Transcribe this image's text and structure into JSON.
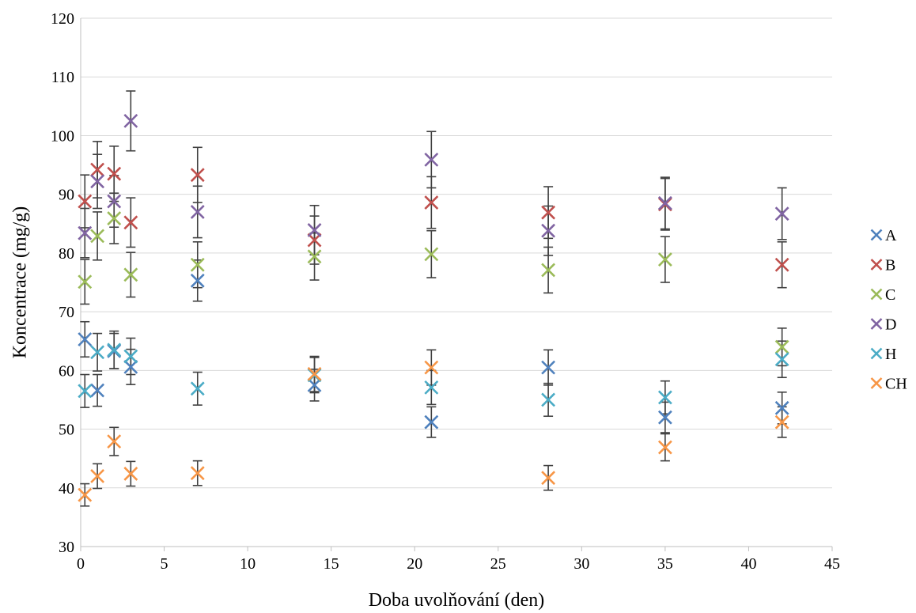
{
  "chart_data": {
    "type": "scatter",
    "xlabel": "Doba uvolňování (den)",
    "ylabel": "Koncentrace (mg/g)",
    "xlim": [
      0,
      45
    ],
    "ylim": [
      30,
      120
    ],
    "xticks": [
      "0",
      "5",
      "10",
      "15",
      "20",
      "25",
      "30",
      "35",
      "40",
      "45"
    ],
    "yticks": [
      "30",
      "40",
      "50",
      "60",
      "70",
      "80",
      "90",
      "100",
      "110",
      "120"
    ],
    "grid": "horizontal",
    "legend_position": "right",
    "marker": "x",
    "error_bars": true,
    "series": [
      {
        "name": "A",
        "color": "#4f81bd",
        "points": [
          {
            "x": 0.25,
            "y": 65.3,
            "err": 3.0
          },
          {
            "x": 1,
            "y": 56.6,
            "err": 2.7
          },
          {
            "x": 2,
            "y": 63.3,
            "err": 3.0
          },
          {
            "x": 3,
            "y": 60.6,
            "err": 3.0
          },
          {
            "x": 7,
            "y": 75.3,
            "err": 3.5
          },
          {
            "x": 14,
            "y": 57.5,
            "err": 2.7
          },
          {
            "x": 21,
            "y": 51.2,
            "err": 2.6
          },
          {
            "x": 28,
            "y": 60.5,
            "err": 3.0
          },
          {
            "x": 35,
            "y": 52.0,
            "err": 2.6
          },
          {
            "x": 42,
            "y": 53.6,
            "err": 2.7
          }
        ]
      },
      {
        "name": "B",
        "color": "#c0504d",
        "points": [
          {
            "x": 0.25,
            "y": 88.8,
            "err": 4.5
          },
          {
            "x": 1,
            "y": 94.2,
            "err": 4.8
          },
          {
            "x": 2,
            "y": 93.5,
            "err": 4.7
          },
          {
            "x": 3,
            "y": 85.2,
            "err": 4.2
          },
          {
            "x": 7,
            "y": 93.3,
            "err": 4.7
          },
          {
            "x": 14,
            "y": 82.2,
            "err": 4.1
          },
          {
            "x": 21,
            "y": 88.6,
            "err": 4.4
          },
          {
            "x": 28,
            "y": 86.9,
            "err": 4.4
          },
          {
            "x": 35,
            "y": 88.3,
            "err": 4.4
          },
          {
            "x": 42,
            "y": 78.0,
            "err": 3.9
          }
        ]
      },
      {
        "name": "C",
        "color": "#9bbb59",
        "points": [
          {
            "x": 0.25,
            "y": 75.1,
            "err": 3.8
          },
          {
            "x": 1,
            "y": 82.9,
            "err": 4.1
          },
          {
            "x": 2,
            "y": 85.9,
            "err": 4.3
          },
          {
            "x": 3,
            "y": 76.3,
            "err": 3.8
          },
          {
            "x": 7,
            "y": 78.0,
            "err": 3.9
          },
          {
            "x": 14,
            "y": 79.4,
            "err": 4.0
          },
          {
            "x": 21,
            "y": 79.8,
            "err": 4.0
          },
          {
            "x": 28,
            "y": 77.1,
            "err": 3.9
          },
          {
            "x": 35,
            "y": 78.9,
            "err": 3.9
          },
          {
            "x": 42,
            "y": 64.0,
            "err": 3.2
          }
        ]
      },
      {
        "name": "D",
        "color": "#8064a2",
        "points": [
          {
            "x": 0.25,
            "y": 83.4,
            "err": 4.2
          },
          {
            "x": 1,
            "y": 92.2,
            "err": 4.6
          },
          {
            "x": 2,
            "y": 88.8,
            "err": 4.4
          },
          {
            "x": 3,
            "y": 102.5,
            "err": 5.1
          },
          {
            "x": 7,
            "y": 87.0,
            "err": 4.4
          },
          {
            "x": 14,
            "y": 83.9,
            "err": 4.2
          },
          {
            "x": 21,
            "y": 95.9,
            "err": 4.8
          },
          {
            "x": 28,
            "y": 83.8,
            "err": 4.2
          },
          {
            "x": 35,
            "y": 88.5,
            "err": 4.4
          },
          {
            "x": 42,
            "y": 86.7,
            "err": 4.4
          }
        ]
      },
      {
        "name": "H",
        "color": "#4bacc6",
        "points": [
          {
            "x": 0.25,
            "y": 56.5,
            "err": 2.8
          },
          {
            "x": 1,
            "y": 63.1,
            "err": 3.2
          },
          {
            "x": 2,
            "y": 63.5,
            "err": 3.2
          },
          {
            "x": 3,
            "y": 62.4,
            "err": 3.1
          },
          {
            "x": 7,
            "y": 56.9,
            "err": 2.8
          },
          {
            "x": 14,
            "y": 59.2,
            "err": 3.0
          },
          {
            "x": 21,
            "y": 57.1,
            "err": 2.9
          },
          {
            "x": 28,
            "y": 55.0,
            "err": 2.8
          },
          {
            "x": 35,
            "y": 55.4,
            "err": 2.8
          },
          {
            "x": 42,
            "y": 61.9,
            "err": 3.1
          }
        ]
      },
      {
        "name": "CH",
        "color": "#f79646",
        "points": [
          {
            "x": 0.25,
            "y": 38.8,
            "err": 1.9
          },
          {
            "x": 1,
            "y": 42.0,
            "err": 2.1
          },
          {
            "x": 2,
            "y": 47.9,
            "err": 2.4
          },
          {
            "x": 3,
            "y": 42.4,
            "err": 2.1
          },
          {
            "x": 7,
            "y": 42.5,
            "err": 2.1
          },
          {
            "x": 14,
            "y": 59.4,
            "err": 3.0
          },
          {
            "x": 21,
            "y": 60.5,
            "err": 3.0
          },
          {
            "x": 28,
            "y": 41.7,
            "err": 2.1
          },
          {
            "x": 35,
            "y": 46.9,
            "err": 2.3
          },
          {
            "x": 42,
            "y": 51.2,
            "err": 2.6
          }
        ]
      }
    ]
  }
}
